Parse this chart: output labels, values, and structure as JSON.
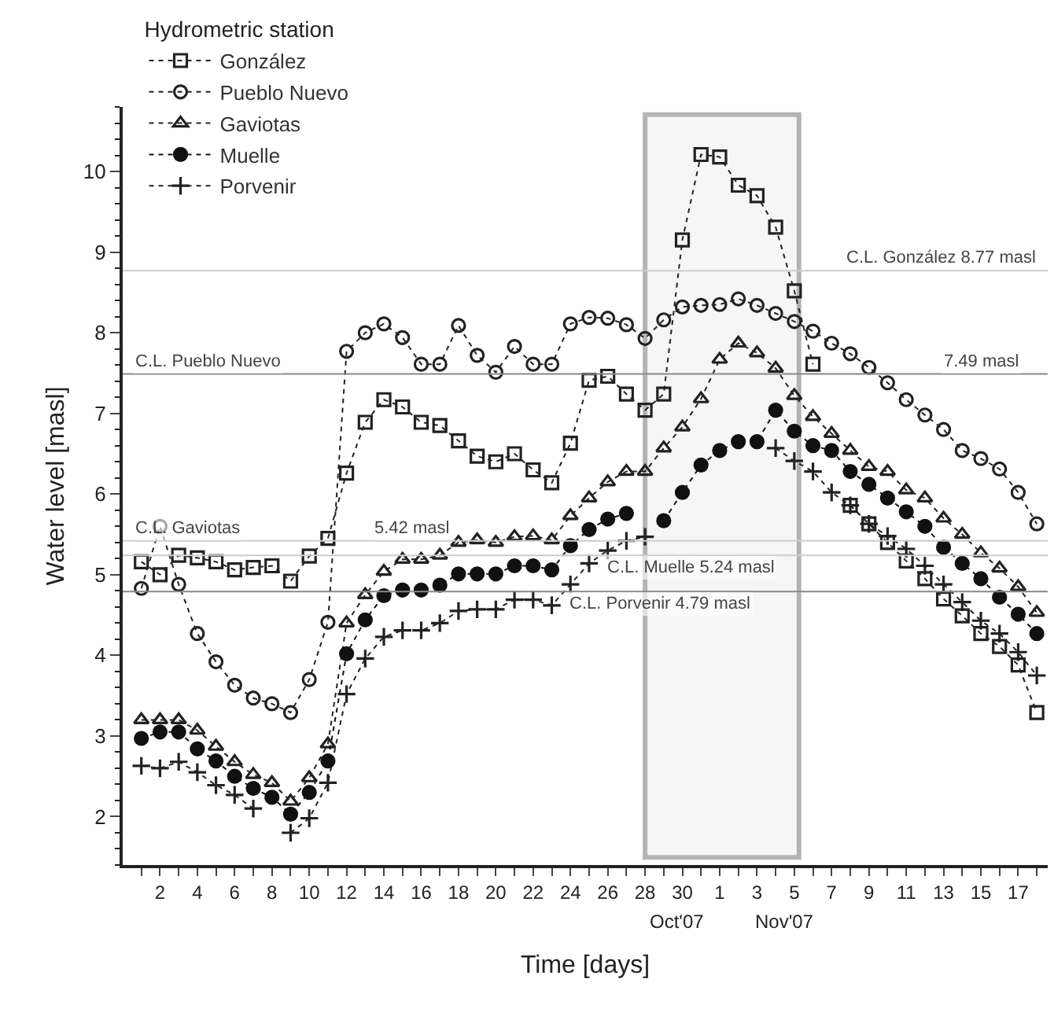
{
  "chart_data": {
    "type": "line",
    "xlabel": "Time [days]",
    "ylabel": "Water level [masl]",
    "legend_title": "Hydrometric station",
    "legend": "top left",
    "grid": false,
    "x": [
      "2007-10-01",
      "2007-10-02",
      "2007-10-03",
      "2007-10-04",
      "2007-10-05",
      "2007-10-06",
      "2007-10-07",
      "2007-10-08",
      "2007-10-09",
      "2007-10-10",
      "2007-10-11",
      "2007-10-12",
      "2007-10-13",
      "2007-10-14",
      "2007-10-15",
      "2007-10-16",
      "2007-10-17",
      "2007-10-18",
      "2007-10-19",
      "2007-10-20",
      "2007-10-21",
      "2007-10-22",
      "2007-10-23",
      "2007-10-24",
      "2007-10-25",
      "2007-10-26",
      "2007-10-27",
      "2007-10-28",
      "2007-10-29",
      "2007-10-30",
      "2007-10-31",
      "2007-11-01",
      "2007-11-02",
      "2007-11-03",
      "2007-11-04",
      "2007-11-05",
      "2007-11-06",
      "2007-11-07",
      "2007-11-08",
      "2007-11-09",
      "2007-11-10",
      "2007-11-11",
      "2007-11-12",
      "2007-11-13",
      "2007-11-14",
      "2007-11-15",
      "2007-11-16",
      "2007-11-17",
      "2007-11-18"
    ],
    "xlim": [
      "2007-09-30",
      "2007-11-18T14:00"
    ],
    "ylim": [
      1.4,
      10.8
    ],
    "yticks": [
      2,
      3,
      4,
      5,
      6,
      7,
      8,
      9,
      10
    ],
    "xticks": [
      {
        "value": "2007-10-01",
        "label": null
      },
      {
        "value": "2007-10-02",
        "label": "2"
      },
      {
        "value": "2007-10-03",
        "label": null
      },
      {
        "value": "2007-10-04",
        "label": "4"
      },
      {
        "value": "2007-10-05",
        "label": null
      },
      {
        "value": "2007-10-06",
        "label": "6"
      },
      {
        "value": "2007-10-07",
        "label": null
      },
      {
        "value": "2007-10-08",
        "label": "8"
      },
      {
        "value": "2007-10-09",
        "label": null
      },
      {
        "value": "2007-10-10",
        "label": "10"
      },
      {
        "value": "2007-10-11",
        "label": null
      },
      {
        "value": "2007-10-12",
        "label": "12"
      },
      {
        "value": "2007-10-13",
        "label": null
      },
      {
        "value": "2007-10-14",
        "label": "14"
      },
      {
        "value": "2007-10-15",
        "label": null
      },
      {
        "value": "2007-10-16",
        "label": "16"
      },
      {
        "value": "2007-10-17",
        "label": null
      },
      {
        "value": "2007-10-18",
        "label": "18"
      },
      {
        "value": "2007-10-19",
        "label": null
      },
      {
        "value": "2007-10-20",
        "label": "20"
      },
      {
        "value": "2007-10-21",
        "label": null
      },
      {
        "value": "2007-10-22",
        "label": "22"
      },
      {
        "value": "2007-10-23",
        "label": null
      },
      {
        "value": "2007-10-24",
        "label": "24"
      },
      {
        "value": "2007-10-25",
        "label": null
      },
      {
        "value": "2007-10-26",
        "label": "26"
      },
      {
        "value": "2007-10-27",
        "label": null
      },
      {
        "value": "2007-10-28",
        "label": "28"
      },
      {
        "value": "2007-10-29",
        "label": null
      },
      {
        "value": "2007-10-30",
        "label": "30"
      },
      {
        "value": "2007-10-31",
        "label": null
      },
      {
        "value": "2007-11-01",
        "label": "1"
      },
      {
        "value": "2007-11-02",
        "label": null
      },
      {
        "value": "2007-11-03",
        "label": "3"
      },
      {
        "value": "2007-11-04",
        "label": null
      },
      {
        "value": "2007-11-05",
        "label": "5"
      },
      {
        "value": "2007-11-06",
        "label": null
      },
      {
        "value": "2007-11-07",
        "label": "7"
      },
      {
        "value": "2007-11-08",
        "label": null
      },
      {
        "value": "2007-11-09",
        "label": "9"
      },
      {
        "value": "2007-11-10",
        "label": null
      },
      {
        "value": "2007-11-11",
        "label": "11"
      },
      {
        "value": "2007-11-12",
        "label": null
      },
      {
        "value": "2007-11-13",
        "label": "13"
      },
      {
        "value": "2007-11-14",
        "label": null
      },
      {
        "value": "2007-11-15",
        "label": "15"
      },
      {
        "value": "2007-11-16",
        "label": null
      },
      {
        "value": "2007-11-17",
        "label": "17"
      },
      {
        "value": "2007-11-18",
        "label": null
      }
    ],
    "series": [
      {
        "name": "González",
        "color": "#222222",
        "marker": "square",
        "line_style": "dotted",
        "values": [
          5.16,
          5.0,
          5.24,
          5.21,
          5.16,
          5.06,
          5.09,
          5.11,
          4.92,
          5.23,
          5.45,
          6.26,
          6.89,
          7.17,
          7.08,
          6.89,
          6.85,
          6.66,
          6.47,
          6.4,
          6.5,
          6.3,
          6.14,
          6.63,
          7.41,
          7.46,
          7.24,
          7.04,
          7.24,
          9.15,
          10.21,
          10.18,
          9.83,
          9.7,
          9.31,
          8.52,
          7.61,
          null,
          5.86,
          5.63,
          5.4,
          5.17,
          4.95,
          4.7,
          4.49,
          4.27,
          4.11,
          3.88,
          3.29
        ]
      },
      {
        "name": "Pueblo Nuevo",
        "color": "#222222",
        "marker": "circle-open",
        "line_style": "dotted",
        "values": [
          4.83,
          5.6,
          4.88,
          4.27,
          3.92,
          3.63,
          3.47,
          3.4,
          3.29,
          3.7,
          4.41,
          7.77,
          8.0,
          8.11,
          7.94,
          7.61,
          7.61,
          8.09,
          7.72,
          7.51,
          7.83,
          7.61,
          7.61,
          8.11,
          8.19,
          8.18,
          8.1,
          7.93,
          8.16,
          8.32,
          8.34,
          8.35,
          8.42,
          8.34,
          8.24,
          8.14,
          8.02,
          7.87,
          7.74,
          7.57,
          7.38,
          7.17,
          6.98,
          6.8,
          6.54,
          6.44,
          6.31,
          6.02,
          5.63
        ]
      },
      {
        "name": "Gaviotas",
        "color": "#222222",
        "marker": "triangle",
        "line_style": "dotted",
        "values": [
          3.2,
          3.2,
          3.2,
          3.07,
          2.87,
          2.68,
          2.52,
          2.42,
          2.19,
          2.48,
          2.9,
          4.4,
          4.75,
          5.04,
          5.19,
          5.19,
          5.24,
          5.4,
          5.43,
          5.4,
          5.47,
          5.48,
          5.43,
          5.73,
          5.95,
          6.15,
          6.28,
          6.28,
          6.57,
          6.83,
          7.18,
          7.67,
          7.87,
          7.75,
          7.56,
          7.22,
          6.96,
          6.75,
          6.54,
          6.34,
          6.28,
          6.05,
          5.95,
          5.7,
          5.5,
          5.27,
          5.08,
          4.85,
          4.53
        ]
      },
      {
        "name": "Muelle",
        "color": "#111111",
        "marker": "circle",
        "line_style": "dotted",
        "values": [
          2.97,
          3.05,
          3.05,
          2.84,
          2.69,
          2.5,
          2.35,
          2.24,
          2.03,
          2.3,
          2.69,
          4.02,
          4.44,
          4.74,
          4.81,
          4.81,
          4.87,
          5.01,
          5.01,
          5.01,
          5.11,
          5.11,
          5.06,
          5.36,
          5.56,
          5.69,
          5.76,
          null,
          5.67,
          6.02,
          6.36,
          6.54,
          6.65,
          6.65,
          7.04,
          6.78,
          6.6,
          6.54,
          6.28,
          6.12,
          5.95,
          5.78,
          5.6,
          5.34,
          5.14,
          4.95,
          4.72,
          4.51,
          4.27
        ]
      },
      {
        "name": "Porvenir",
        "color": "#222222",
        "marker": "cross",
        "line_style": "dotted",
        "values": [
          2.63,
          2.6,
          2.68,
          2.55,
          2.39,
          2.27,
          2.1,
          null,
          1.8,
          1.98,
          2.42,
          3.52,
          3.96,
          4.23,
          4.31,
          4.31,
          4.4,
          4.55,
          4.57,
          4.57,
          4.69,
          4.69,
          4.62,
          4.88,
          5.14,
          5.3,
          5.42,
          5.47,
          null,
          null,
          null,
          null,
          null,
          null,
          6.57,
          6.41,
          6.28,
          6.02,
          5.86,
          5.63,
          5.48,
          5.32,
          5.11,
          4.88,
          4.66,
          4.43,
          4.27,
          4.04,
          3.75
        ]
      }
    ],
    "ref_lines": [
      {
        "axis": "y",
        "value": 8.77,
        "label": "C.L. González 8.77 masl",
        "color": "#cccccc"
      },
      {
        "axis": "y",
        "value": 7.49,
        "label": "C.L. Pueblo Nuevo",
        "color": "#888888"
      },
      {
        "axis": "y",
        "value": 5.42,
        "label": "C.L. Gaviotas",
        "color": "#cccccc"
      },
      {
        "axis": "y",
        "value": 5.24,
        "label": "C.L. Muelle 5.24 masl",
        "color": "#cccccc"
      },
      {
        "axis": "y",
        "value": 4.79,
        "label": "C.L. Porvenir 4.79 masl",
        "color": "#888888"
      }
    ],
    "bands": [
      {
        "axis": "x",
        "from": "2007-10-28",
        "to": "2007-11-05T06:00",
        "color": "#b4b4b4"
      }
    ],
    "annotations": [
      {
        "text": "7.49 masl",
        "x": "2007-11-15",
        "y": 7.49
      },
      {
        "text": "5.42 masl",
        "x": "2007-10-15T12:00",
        "y": 5.42
      },
      "Oct'07",
      "Nov'07"
    ]
  }
}
